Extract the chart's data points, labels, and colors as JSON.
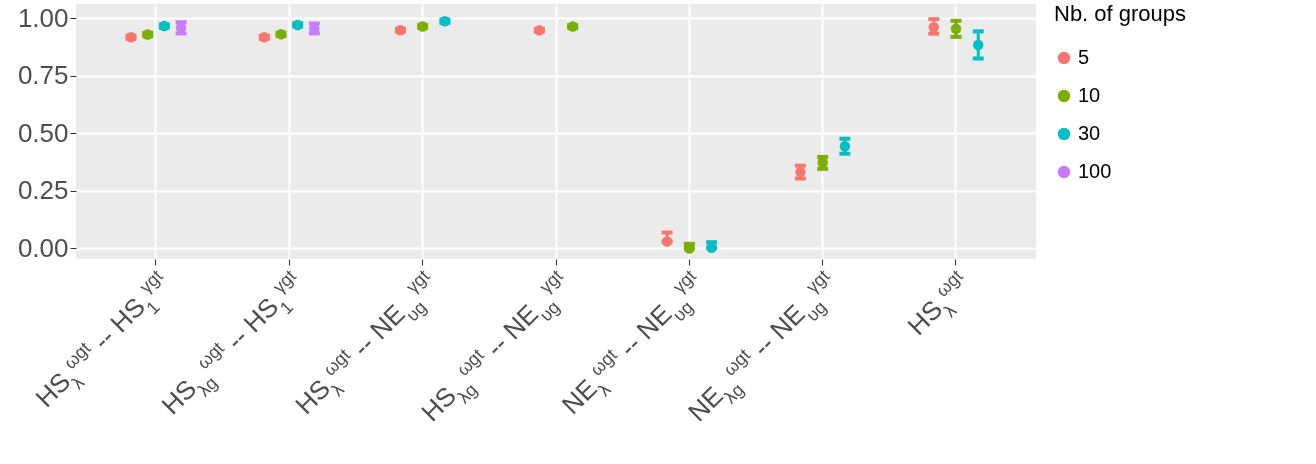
{
  "chart_data": {
    "type": "scatter",
    "categories": [
      "HS$_{λ}$$^{ωgt}$ -- HS$_{1}$$^{γgt}$",
      "HS$_{λg}$$^{ωgt}$ -- HS$_{1}$$^{γgt}$",
      "HS$_{λ}$$^{ωgt}$ -- NE$_{υg}$$^{γgt}$",
      "HS$_{λg}$$^{ωgt}$ -- NE$_{υg}$$^{γgt}$",
      "NE$_{λ}$$^{ωgt}$ -- NE$_{υg}$$^{γgt}$",
      "NE$_{λg}$$^{ωgt}$ -- NE$_{υg}$$^{γgt}$",
      "HS$_{λ}$$^{ωgt}$"
    ],
    "series": [
      {
        "name": "5",
        "color": "#f8766d",
        "values": [
          0.918,
          0.918,
          0.949,
          0.949,
          0.03,
          0.332,
          0.962
        ],
        "errors": [
          [
            0.911,
            0.925
          ],
          [
            0.911,
            0.925
          ],
          [
            0.943,
            0.955
          ],
          [
            0.943,
            0.955
          ],
          [
            0.03,
            0.069
          ],
          [
            0.304,
            0.36
          ],
          [
            0.934,
            0.997
          ]
        ]
      },
      {
        "name": "10",
        "color": "#7cae00",
        "values": [
          0.93,
          0.931,
          0.965,
          0.965,
          0.0,
          0.374,
          0.955
        ],
        "errors": [
          [
            0.923,
            0.937
          ],
          [
            0.924,
            0.938
          ],
          [
            0.959,
            0.971
          ],
          [
            0.959,
            0.971
          ],
          [
            0.0,
            0.02
          ],
          [
            0.346,
            0.398
          ],
          [
            0.92,
            0.99
          ]
        ]
      },
      {
        "name": "30",
        "color": "#00bfc4",
        "values": [
          0.967,
          0.972,
          0.988,
          null,
          0.003,
          0.444,
          0.885
        ],
        "errors": [
          [
            0.96,
            0.974
          ],
          [
            0.965,
            0.979
          ],
          [
            0.981,
            0.995
          ],
          null,
          [
            0.003,
            0.027
          ],
          [
            0.412,
            0.477
          ],
          [
            0.826,
            0.944
          ]
        ]
      },
      {
        "name": "100",
        "color": "#c77cff",
        "values": [
          0.961,
          0.956,
          null,
          null,
          null,
          null,
          null
        ],
        "errors": [
          [
            0.935,
            0.984
          ],
          [
            0.935,
            0.978
          ],
          null,
          null,
          null,
          null,
          null
        ]
      }
    ],
    "ylim": [
      -0.046,
      1.063
    ],
    "yticks": [
      {
        "value": 0,
        "label": "0.00"
      },
      {
        "value": 0.25,
        "label": "0.25"
      },
      {
        "value": 0.5,
        "label": "0.50"
      },
      {
        "value": 0.75,
        "label": "0.75"
      },
      {
        "value": 1,
        "label": "1.00"
      }
    ],
    "legend_title": "Nb. of groups",
    "legend": "right",
    "grid": true,
    "marker": "circle"
  }
}
